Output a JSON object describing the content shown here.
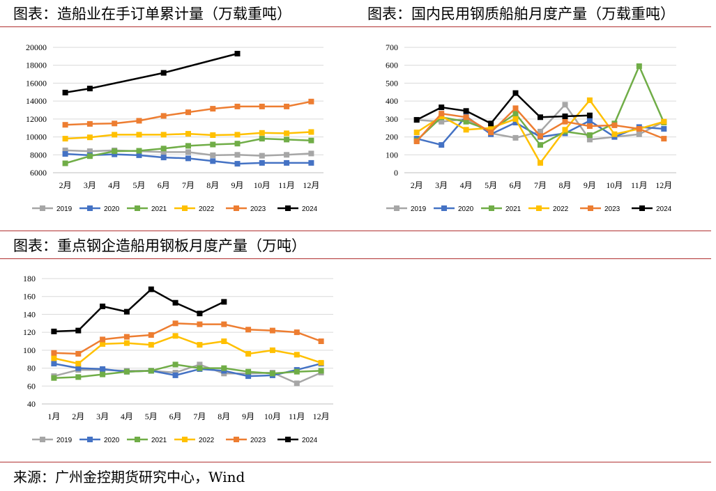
{
  "legend_colors": {
    "2019": "#a6a6a6",
    "2020": "#4472c4",
    "2021": "#70ad47",
    "2022": "#ffc000",
    "2023": "#ed7d31",
    "2024": "#000000"
  },
  "source": "来源：广州金控期货研究中心，Wind",
  "chart_data": [
    {
      "type": "line",
      "title": "图表：造船业在手订单累计量（万载重吨）",
      "categories": [
        "2月",
        "3月",
        "4月",
        "5月",
        "6月",
        "7月",
        "8月",
        "9月",
        "10月",
        "11月",
        "12月"
      ],
      "ylim": [
        6000,
        20000
      ],
      "yticks": [
        6000,
        8000,
        10000,
        12000,
        14000,
        16000,
        18000,
        20000
      ],
      "grid": true,
      "legend": "bottom",
      "series": [
        {
          "name": "2019",
          "values": [
            8500,
            8400,
            8500,
            8400,
            8300,
            8300,
            7950,
            8000,
            7900,
            8000,
            8150
          ]
        },
        {
          "name": "2020",
          "values": [
            8100,
            7950,
            8050,
            7950,
            7700,
            7600,
            7300,
            7000,
            7100,
            7100,
            7100
          ]
        },
        {
          "name": "2021",
          "values": [
            7050,
            7850,
            8400,
            8450,
            8700,
            9000,
            9150,
            9250,
            9800,
            9700,
            9600
          ]
        },
        {
          "name": "2022",
          "values": [
            9800,
            9950,
            10250,
            10250,
            10250,
            10350,
            10200,
            10250,
            10450,
            10400,
            10550
          ]
        },
        {
          "name": "2023",
          "values": [
            11350,
            11450,
            11500,
            11800,
            12350,
            12750,
            13150,
            13400,
            13400,
            13400,
            13950
          ]
        },
        {
          "name": "2024",
          "values": [
            14950,
            15400,
            null,
            null,
            17150,
            null,
            null,
            19300,
            null,
            null,
            null
          ]
        }
      ]
    },
    {
      "type": "line",
      "title": "图表：国内民用钢质船舶月度产量（万载重吨）",
      "categories": [
        "2月",
        "3月",
        "4月",
        "5月",
        "6月",
        "7月",
        "8月",
        "9月",
        "10月",
        "11月",
        "12月"
      ],
      "ylim": [
        0,
        700
      ],
      "yticks": [
        0,
        100,
        200,
        300,
        400,
        500,
        600,
        700
      ],
      "grid": true,
      "legend": "bottom",
      "series": [
        {
          "name": "2019",
          "values": [
            295,
            285,
            300,
            220,
            195,
            230,
            380,
            185,
            200,
            215,
            285
          ]
        },
        {
          "name": "2020",
          "values": [
            190,
            155,
            315,
            215,
            280,
            200,
            220,
            290,
            200,
            255,
            245
          ]
        },
        {
          "name": "2021",
          "values": [
            180,
            310,
            285,
            235,
            330,
            155,
            230,
            210,
            275,
            595,
            280
          ]
        },
        {
          "name": "2022",
          "values": [
            225,
            315,
            240,
            250,
            300,
            55,
            240,
            405,
            215,
            245,
            285
          ]
        },
        {
          "name": "2023",
          "values": [
            175,
            330,
            310,
            225,
            360,
            205,
            285,
            260,
            265,
            245,
            190
          ]
        },
        {
          "name": "2024",
          "values": [
            295,
            365,
            345,
            275,
            445,
            310,
            315,
            320,
            null,
            null,
            null
          ]
        }
      ]
    },
    {
      "type": "line",
      "title": "图表：重点钢企造船用钢板月度产量（万吨）",
      "categories": [
        "1月",
        "2月",
        "3月",
        "4月",
        "5月",
        "6月",
        "7月",
        "8月",
        "9月",
        "10月",
        "11月",
        "12月"
      ],
      "ylim": [
        40,
        180
      ],
      "yticks": [
        40,
        60,
        80,
        100,
        120,
        140,
        160,
        180
      ],
      "grid": true,
      "legend": "bottom",
      "series": [
        {
          "name": "2019",
          "values": [
            71,
            78,
            78,
            77,
            77,
            75,
            84,
            74,
            74,
            75,
            63,
            75
          ]
        },
        {
          "name": "2020",
          "values": [
            85,
            80,
            79,
            76,
            77,
            72,
            79,
            77,
            71,
            72,
            78,
            85
          ]
        },
        {
          "name": "2021",
          "values": [
            69,
            70,
            73,
            76,
            77,
            84,
            80,
            80,
            76,
            74,
            76,
            77
          ]
        },
        {
          "name": "2022",
          "values": [
            91,
            85,
            107,
            108,
            106,
            116,
            106,
            110,
            96,
            100,
            95,
            86
          ]
        },
        {
          "name": "2023",
          "values": [
            97,
            96,
            112,
            115,
            117,
            130,
            129,
            129,
            123,
            122,
            120,
            110
          ]
        },
        {
          "name": "2024",
          "values": [
            121,
            122,
            149,
            143,
            168,
            153,
            141,
            154,
            null,
            null,
            null,
            null
          ]
        }
      ]
    }
  ]
}
